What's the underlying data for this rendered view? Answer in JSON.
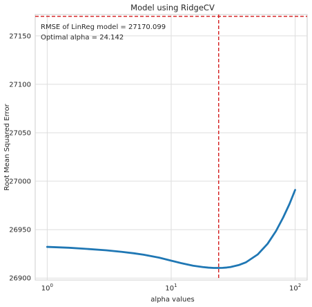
{
  "chart_data": {
    "type": "line",
    "title": "Model using RidgeCV",
    "xlabel": "alpha values",
    "ylabel": "Root Mean Squared Error",
    "xscale": "log",
    "xlim": [
      0.8,
      125
    ],
    "ylim": [
      26898,
      27172
    ],
    "grid": true,
    "xticks": [
      {
        "value": 1,
        "base": "10",
        "exp": "0"
      },
      {
        "value": 10,
        "base": "10",
        "exp": "1"
      },
      {
        "value": 100,
        "base": "10",
        "exp": "2"
      }
    ],
    "yticks": [
      26900,
      26950,
      27000,
      27050,
      27100,
      27150
    ],
    "series": [
      {
        "color": "#1f77b4",
        "x": [
          1,
          1.5,
          2,
          3,
          4,
          5,
          6,
          8,
          10,
          12,
          15,
          18,
          20,
          22,
          24.142,
          26,
          28,
          30,
          35,
          40,
          50,
          60,
          70,
          80,
          90,
          100
        ],
        "y": [
          26932.2,
          26931.3,
          26930.3,
          26928.7,
          26927.1,
          26925.6,
          26924.1,
          26921.1,
          26918.0,
          26915.5,
          26912.8,
          26911.4,
          26910.8,
          26910.5,
          26910.5,
          26910.6,
          26910.9,
          26911.4,
          26913.4,
          26916.2,
          26924.5,
          26935.5,
          26948.5,
          26962.5,
          26976.5,
          26991.0
        ]
      }
    ],
    "reference_lines": [
      {
        "orientation": "horizontal",
        "value": 27170.099,
        "color": "#d62728",
        "style": "dashed"
      },
      {
        "orientation": "vertical",
        "value": 24.142,
        "color": "#d62728",
        "style": "dashed"
      }
    ],
    "annotations": [
      "RMSE of LinReg model = 27170.099",
      "Optimal alpha = 24.142"
    ]
  }
}
